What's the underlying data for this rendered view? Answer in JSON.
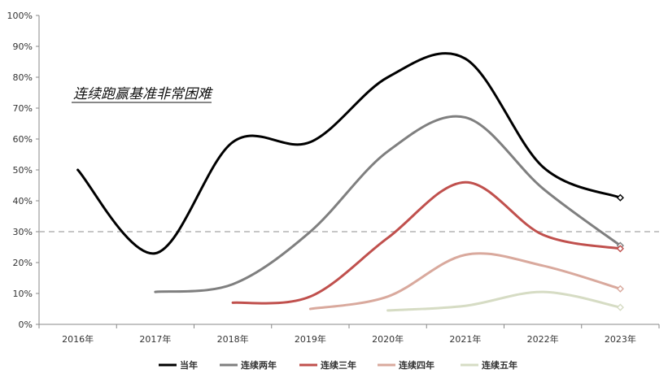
{
  "chart_data": {
    "type": "line",
    "title": "",
    "xlabel": "",
    "ylabel": "",
    "categories": [
      "2016年",
      "2017年",
      "2018年",
      "2019年",
      "2020年",
      "2021年",
      "2022年",
      "2023年"
    ],
    "ylim": [
      0,
      100
    ],
    "yticks": [
      "0%",
      "10%",
      "20%",
      "30%",
      "40%",
      "50%",
      "60%",
      "70%",
      "80%",
      "90%",
      "100%"
    ],
    "grid": false,
    "legend_position": "bottom",
    "reference_line": {
      "y": 30,
      "style": "dashed",
      "color": "#b3b3b3"
    },
    "annotation": "连续跑赢基准非常困难",
    "series": [
      {
        "name": "当年",
        "color": "#000000",
        "values": [
          50,
          23,
          59,
          59,
          80,
          86,
          51,
          41
        ]
      },
      {
        "name": "连续两年",
        "color": "#7f7f7f",
        "values": [
          null,
          10.5,
          13,
          30,
          56,
          67,
          44,
          25.5
        ]
      },
      {
        "name": "连续三年",
        "color": "#c0504d",
        "values": [
          null,
          null,
          7,
          9,
          28,
          46,
          29,
          24.5
        ]
      },
      {
        "name": "连续四年",
        "color": "#d9a99d",
        "values": [
          null,
          null,
          null,
          5,
          9,
          22.5,
          19,
          11.5
        ]
      },
      {
        "name": "连续五年",
        "color": "#d6dcc4",
        "values": [
          null,
          null,
          null,
          null,
          4.5,
          6,
          10.5,
          5.5
        ]
      }
    ]
  }
}
